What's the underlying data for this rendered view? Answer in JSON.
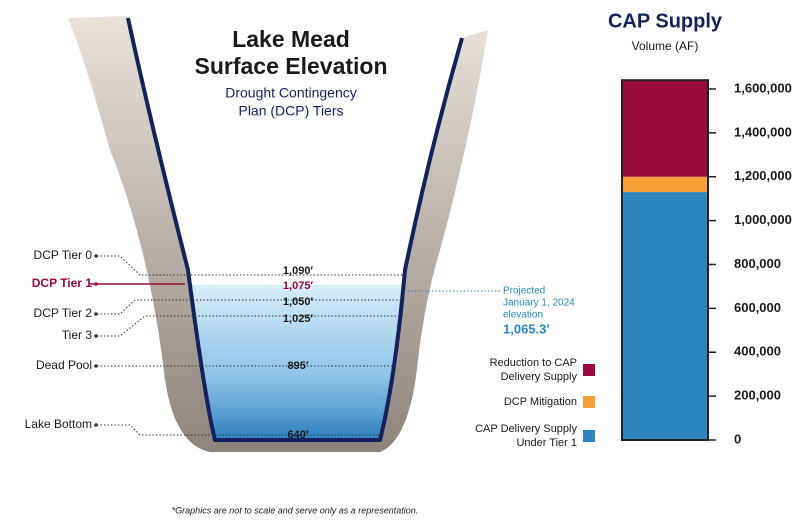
{
  "chart_data": {
    "type": "stacked-bar",
    "title": "CAP Supply",
    "subtitle": "Volume (AF)",
    "categories": [
      null
    ],
    "series": [
      {
        "name": "CAP Delivery Supply Under Tier 1",
        "color": "#2e86c1",
        "values": [
          1130000
        ]
      },
      {
        "name": "DCP Mitigation",
        "color": "#f7a035",
        "values": [
          70000
        ]
      },
      {
        "name": "Reduction to CAP Delivery Supply",
        "color": "#9b0a3c",
        "values": [
          440000
        ]
      }
    ],
    "ylim": [
      0,
      1650000
    ],
    "yticks": [
      0,
      {
        "value": 200000,
        "label": "200,000"
      },
      {
        "value": 400000,
        "label": "400,000"
      },
      {
        "value": 600000,
        "label": "600,000"
      },
      {
        "value": 800000,
        "label": "800,000"
      },
      {
        "value": 1000000,
        "label": "1,000,000"
      },
      {
        "value": 1200000,
        "label": "1,200,000"
      },
      {
        "value": 1400000,
        "label": "1,400,000"
      },
      {
        "value": 1600000,
        "label": "1,600,000"
      }
    ]
  },
  "diagram": {
    "title": [
      "Lake Mead",
      "Surface Elevation"
    ],
    "subtitle": [
      "Drought Contingency",
      "Plan (DCP) Tiers"
    ],
    "tiers": [
      "DCP Tier 0",
      "DCP Tier 1",
      "DCP Tier 2",
      "Tier 3",
      "Dead Pool",
      "Lake Bottom"
    ],
    "levels": [
      "1,090′",
      "1,075′",
      "1,050′",
      "1,025′",
      "895′",
      "640′"
    ],
    "projected": [
      "Projected",
      "January 1, 2024",
      "elevation",
      "1,065.3′"
    ],
    "footnote": "*Graphics are not to scale and serve only as a representation."
  }
}
